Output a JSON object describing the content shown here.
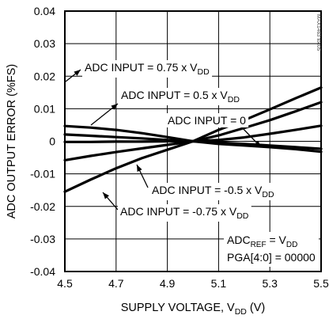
{
  "chart_data": {
    "type": "line",
    "title": "",
    "xlabel": {
      "prefix": "SUPPLY VOLTAGE, V",
      "sub": "DD",
      "suffix": " (V)"
    },
    "ylabel": "ADC OUTPUT ERROR (%FS)",
    "xlim": [
      4.5,
      5.5
    ],
    "ylim": [
      -0.04,
      0.04
    ],
    "x_ticks": [
      "4.5",
      "4.7",
      "4.9",
      "5.1",
      "5.3",
      "5.5"
    ],
    "y_ticks": [
      "0.04",
      "0.03",
      "0.02",
      "0.01",
      "0",
      "-0.01",
      "-0.02",
      "-0.03",
      "-0.04"
    ],
    "grid": true,
    "side_note": "MAX1463 toc05",
    "conditions": {
      "line1": {
        "prefix": "ADC",
        "sub": "REF",
        "suffix": " = V",
        "sub2": "DD"
      },
      "line2": "PGA[4:0] = 00000"
    },
    "series": [
      {
        "name": "ADC INPUT = 0.75 x VDD",
        "label_prefix": "ADC INPUT = 0.75 x V",
        "label_sub": "DD",
        "x": [
          4.5,
          4.6,
          4.7,
          4.8,
          4.9,
          5.0,
          5.1,
          5.2,
          5.3,
          5.4,
          5.5
        ],
        "y": [
          -0.0155,
          -0.0118,
          -0.0083,
          -0.0052,
          -0.0026,
          0.0,
          0.0035,
          0.0065,
          0.0098,
          0.0132,
          0.0165
        ]
      },
      {
        "name": "ADC INPUT = 0.5 x VDD",
        "label_prefix": "ADC INPUT = 0.5 x V",
        "label_sub": "DD",
        "x": [
          4.5,
          4.6,
          4.7,
          4.8,
          4.9,
          5.0,
          5.1,
          5.2,
          5.3,
          5.4,
          5.5
        ],
        "y": [
          -0.0058,
          -0.0045,
          -0.0033,
          -0.0022,
          -0.0011,
          0.0,
          0.0018,
          0.0041,
          0.0065,
          0.0092,
          0.012
        ]
      },
      {
        "name": "ADC INPUT = 0",
        "label_prefix": "ADC INPUT = 0",
        "label_sub": "",
        "x": [
          4.5,
          4.6,
          4.7,
          4.8,
          4.9,
          5.0,
          5.1,
          5.2,
          5.3,
          5.4,
          5.5
        ],
        "y": [
          -0.0002,
          -0.0002,
          -0.0001,
          -0.0001,
          0.0,
          0.0,
          0.0004,
          0.0012,
          0.0023,
          0.0035,
          0.0048
        ]
      },
      {
        "name": "ADC INPUT = -0.5 x VDD",
        "label_prefix": "ADC INPUT = -0.5 x V",
        "label_sub": "DD",
        "x": [
          4.5,
          4.6,
          4.7,
          4.8,
          4.9,
          5.0,
          5.1,
          5.2,
          5.3,
          5.4,
          5.5
        ],
        "y": [
          0.0021,
          0.0017,
          0.0013,
          0.0009,
          0.0004,
          0.0,
          -0.0004,
          -0.0008,
          -0.0013,
          -0.0018,
          -0.0023
        ]
      },
      {
        "name": "ADC INPUT = -0.75 x VDD",
        "label_prefix": "ADC INPUT = -0.75 x V",
        "label_sub": "DD",
        "x": [
          4.5,
          4.6,
          4.7,
          4.8,
          4.9,
          5.0,
          5.1,
          5.2,
          5.3,
          5.4,
          5.5
        ],
        "y": [
          0.0047,
          0.0042,
          0.0035,
          0.0025,
          0.0013,
          0.0,
          -0.0008,
          -0.0013,
          -0.0018,
          -0.0024,
          -0.0032
        ]
      }
    ]
  }
}
